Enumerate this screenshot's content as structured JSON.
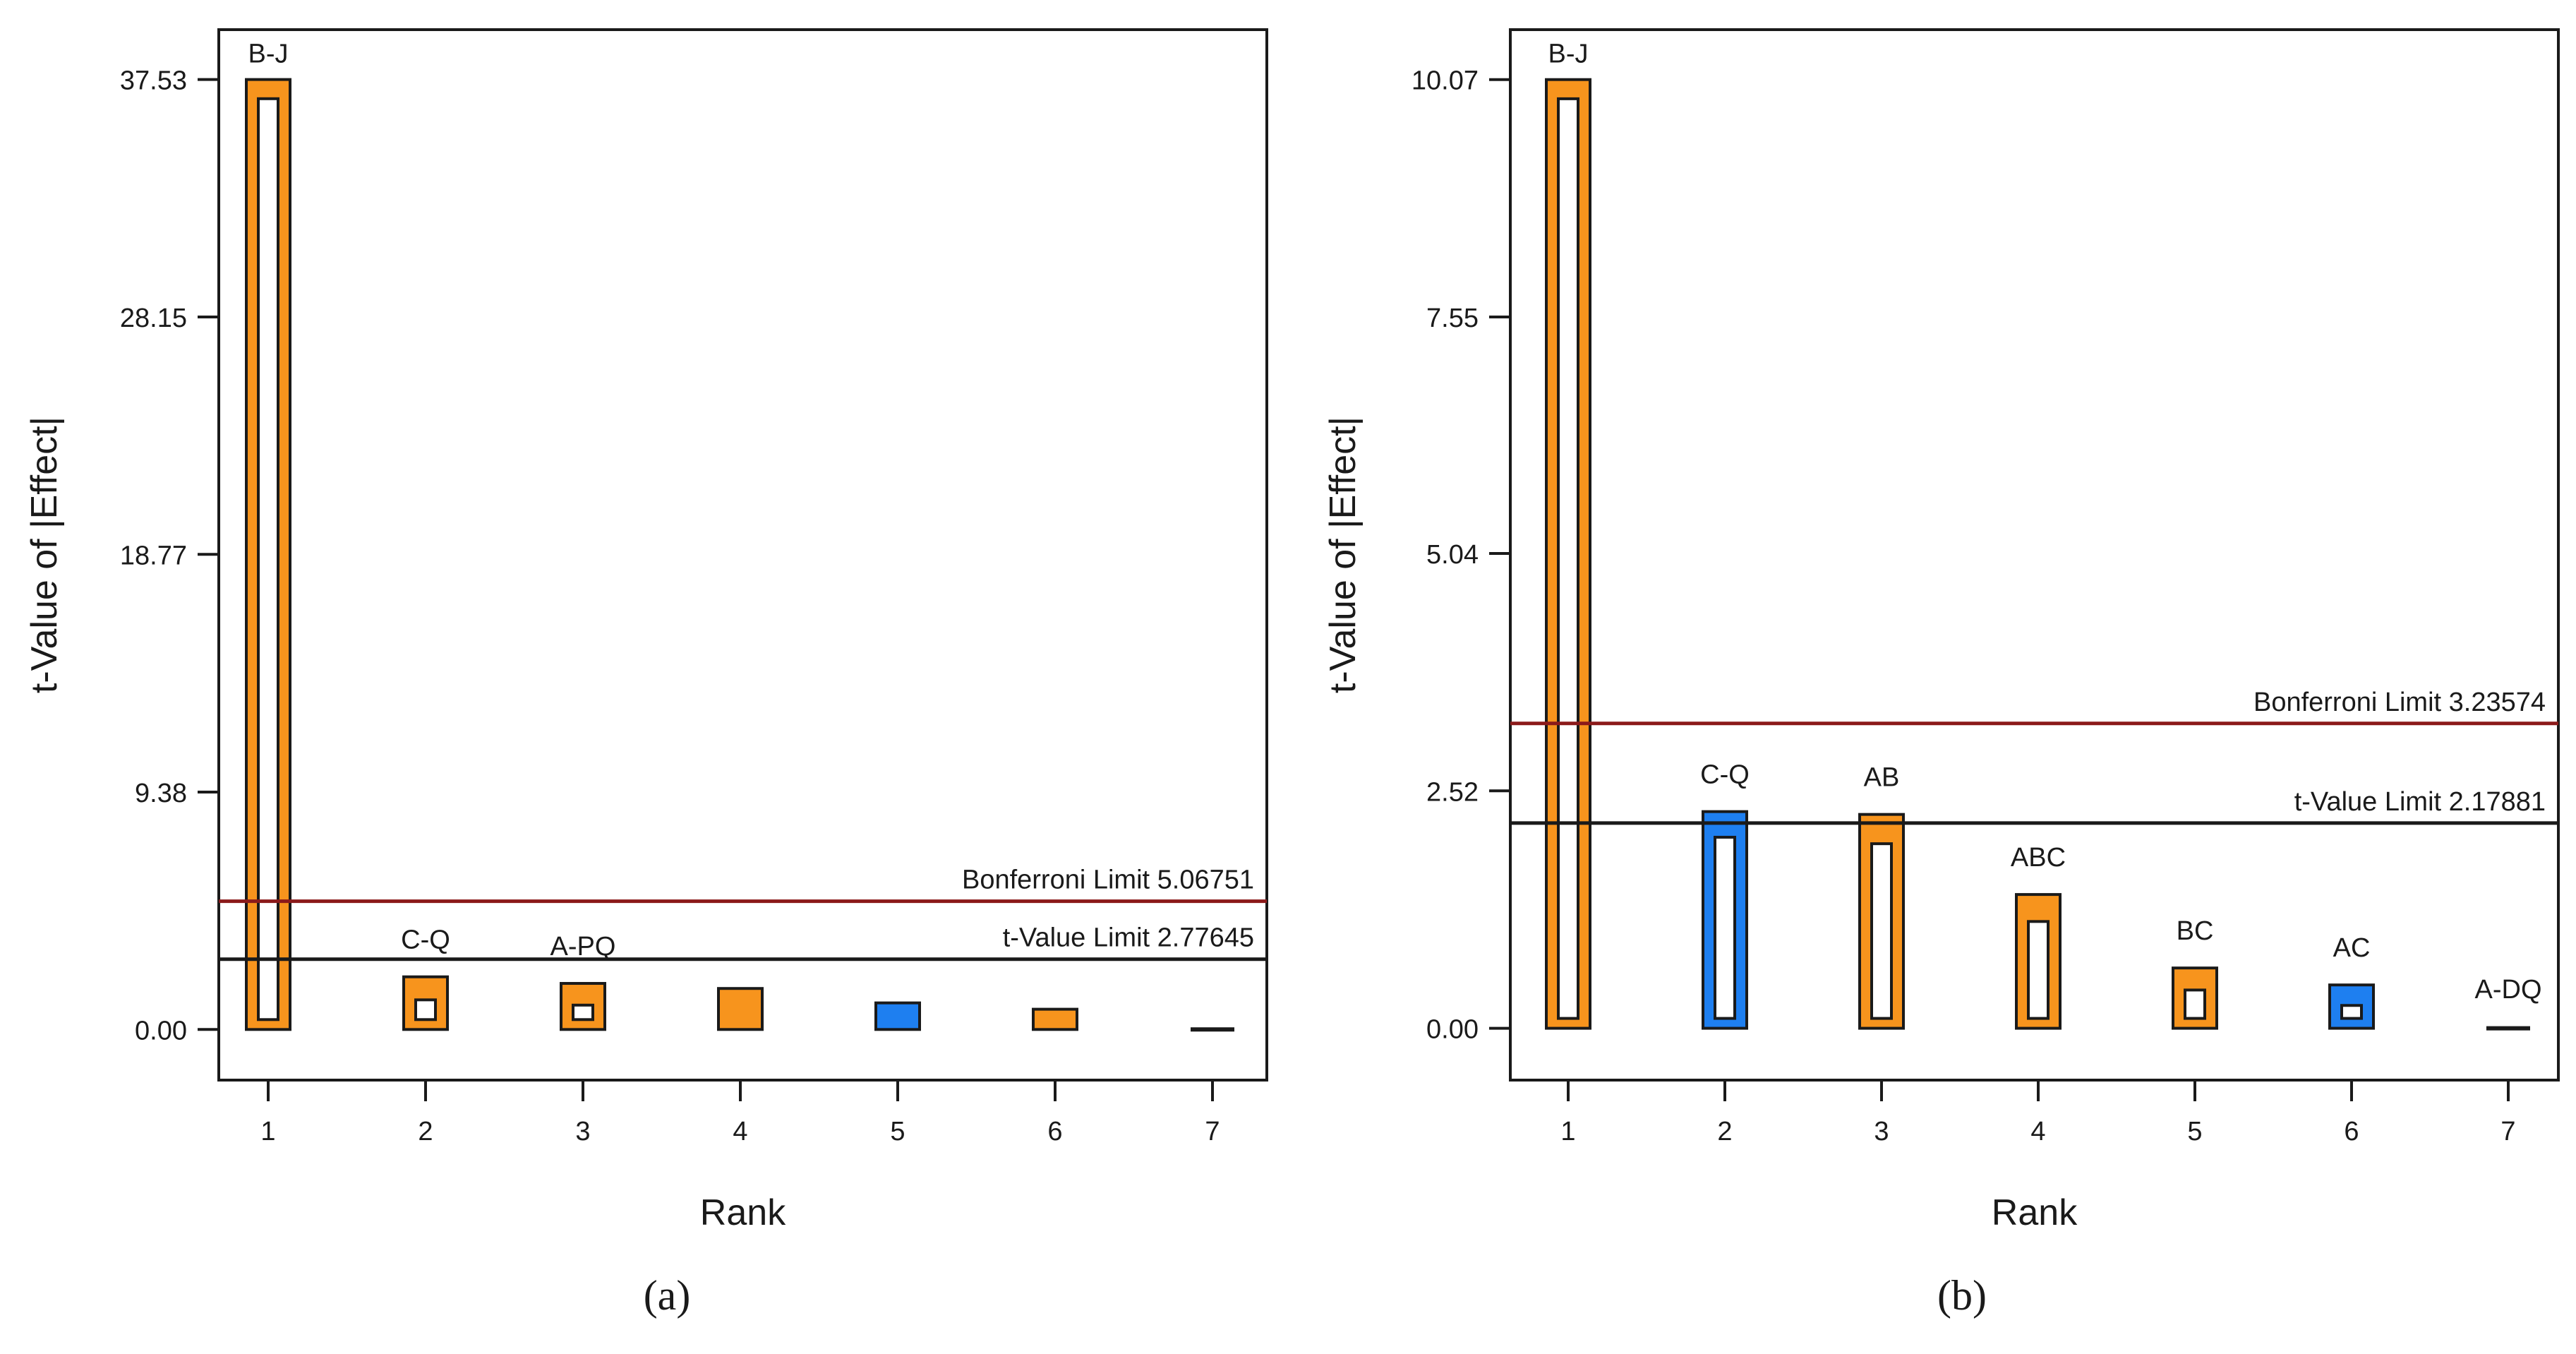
{
  "colors": {
    "positive": "#f7941d",
    "negative": "#1e7ff0",
    "bonferroni_line": "#8b1a1a",
    "tlimit_line": "#1a1a1a",
    "axis": "#1a1a1a"
  },
  "chart_data": [
    {
      "type": "bar",
      "panel_label": "a",
      "xlabel": "Rank",
      "ylabel": "t-Value of |Effect|",
      "ylim": [
        -2.0,
        39.5
      ],
      "yticks": [
        "0.00",
        "9.38",
        "18.77",
        "28.15",
        "37.53"
      ],
      "ytick_values": [
        0.0,
        9.38,
        18.77,
        28.15,
        37.53
      ],
      "categories": [
        "1",
        "2",
        "3",
        "4",
        "5",
        "6",
        "7"
      ],
      "values": [
        37.53,
        2.08,
        1.82,
        1.62,
        1.05,
        0.8,
        0.05
      ],
      "signs": [
        "positive",
        "positive",
        "positive",
        "positive",
        "negative",
        "positive",
        "neutral"
      ],
      "inner_ratio": [
        0.99,
        0.6,
        0.55,
        0.0,
        0.0,
        0.0,
        0.0
      ],
      "bar_labels": [
        "B-J",
        "C-Q",
        "A-PQ",
        "",
        "",
        "",
        ""
      ],
      "limits": [
        {
          "name": "Bonferroni Limit",
          "value": 5.06751,
          "label": "Bonferroni Limit 5.06751",
          "kind": "bonferroni"
        },
        {
          "name": "t-Value Limit",
          "value": 2.77645,
          "label": "t-Value Limit 2.77645",
          "kind": "tlimit"
        }
      ]
    },
    {
      "type": "bar",
      "panel_label": "b",
      "xlabel": "Rank",
      "ylabel": "t-Value of |Effect|",
      "ylim": [
        -0.55,
        10.6
      ],
      "yticks": [
        "0.00",
        "2.52",
        "5.04",
        "7.55",
        "10.07"
      ],
      "ytick_values": [
        0.0,
        2.52,
        5.04,
        7.55,
        10.07
      ],
      "categories": [
        "1",
        "2",
        "3",
        "4",
        "5",
        "6",
        "7"
      ],
      "values": [
        10.07,
        2.3,
        2.27,
        1.42,
        0.64,
        0.46,
        0.02
      ],
      "signs": [
        "positive",
        "negative",
        "positive",
        "positive",
        "positive",
        "negative",
        "neutral"
      ],
      "inner_ratio": [
        0.99,
        0.92,
        0.9,
        0.85,
        0.7,
        0.55,
        0.0
      ],
      "bar_labels": [
        "B-J",
        "C-Q",
        "AB",
        "ABC",
        "BC",
        "AC",
        "A-DQ"
      ],
      "limits": [
        {
          "name": "Bonferroni Limit",
          "value": 3.23574,
          "label": "Bonferroni Limit 3.23574",
          "kind": "bonferroni"
        },
        {
          "name": "t-Value Limit",
          "value": 2.17881,
          "label": "t-Value Limit 2.17881",
          "kind": "tlimit"
        }
      ]
    }
  ],
  "captions": [
    "(a)",
    "(b)"
  ]
}
